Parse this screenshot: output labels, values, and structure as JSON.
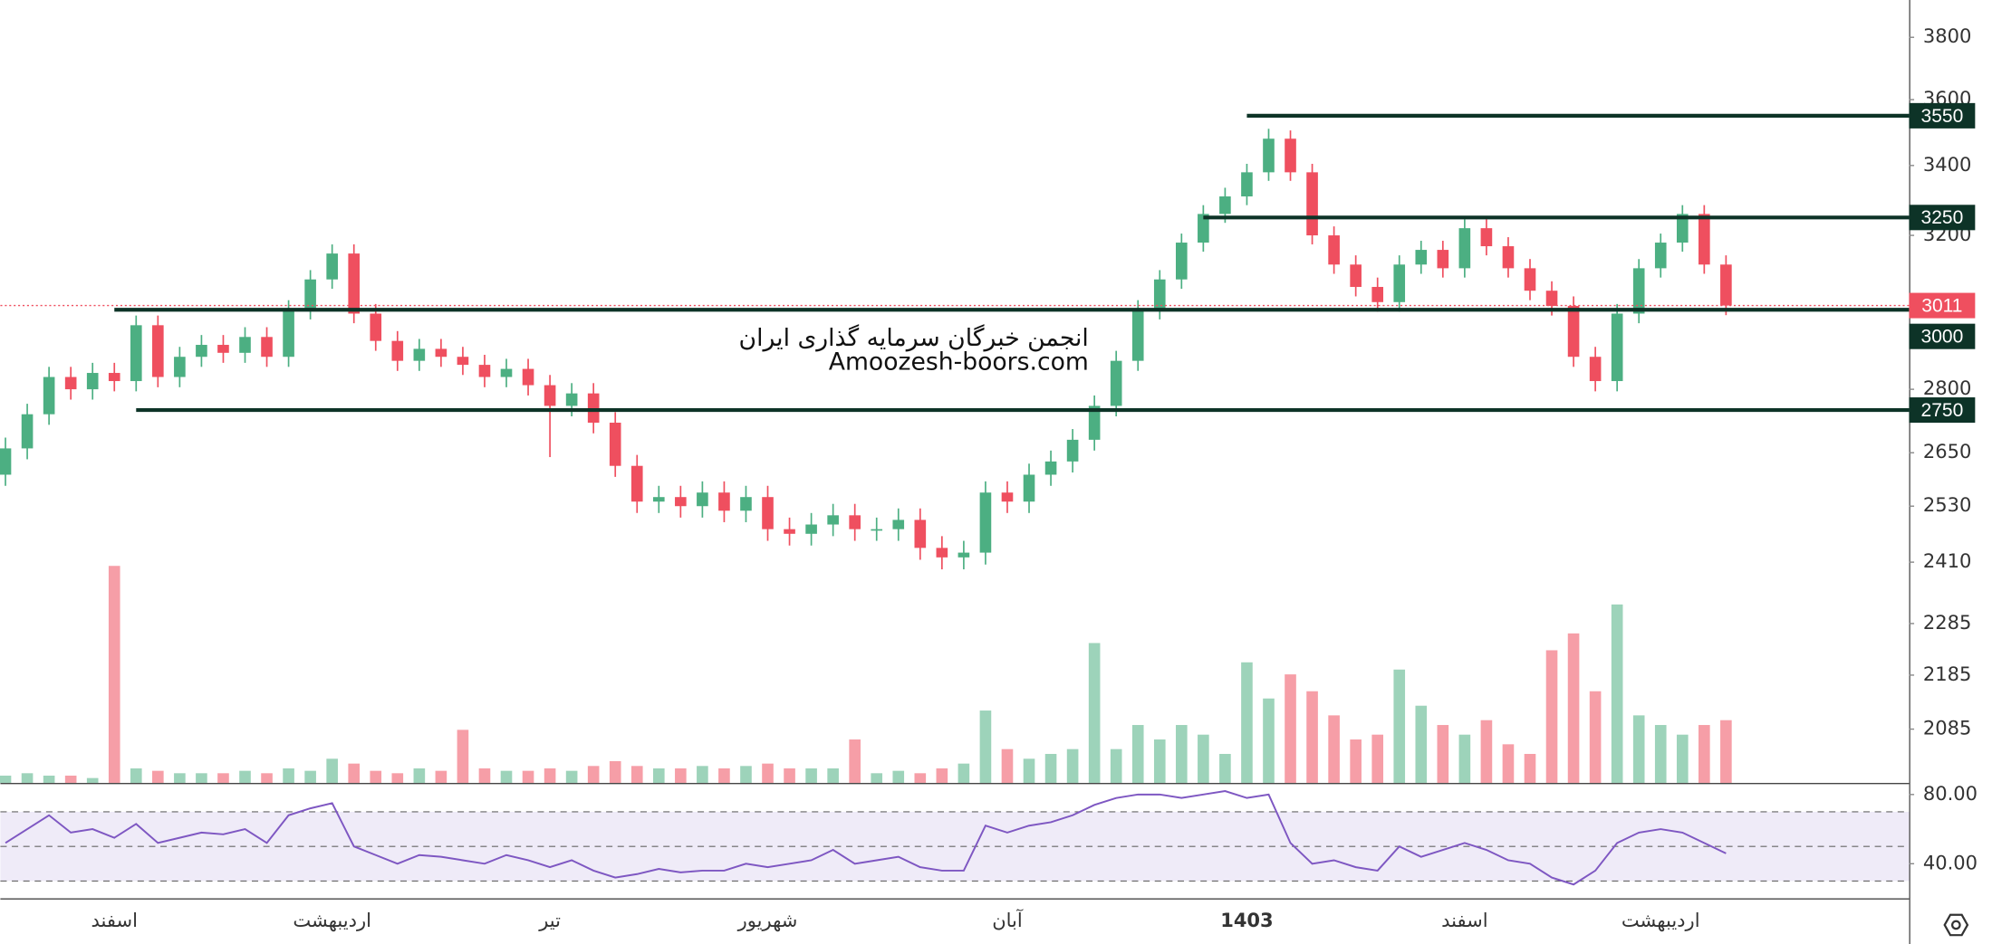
{
  "chart_data": {
    "type": "candlestick",
    "log_scale": true,
    "ylim": [
      1990,
      3925
    ],
    "yticks": [
      3800,
      3600,
      3400,
      3200,
      2800,
      2650,
      2530,
      2410,
      2285,
      2185,
      2085
    ],
    "up_color": "#4caf82",
    "down_color": "#ef4f5f",
    "categories": [
      null,
      null,
      null,
      null,
      null,
      "اسفند",
      null,
      null,
      null,
      null,
      null,
      null,
      null,
      null,
      null,
      "اردیبهشت",
      null,
      null,
      null,
      null,
      null,
      null,
      null,
      null,
      null,
      "تیر",
      null,
      null,
      null,
      null,
      null,
      null,
      null,
      null,
      null,
      "شهریور",
      null,
      null,
      null,
      null,
      null,
      null,
      null,
      null,
      null,
      null,
      "آبان",
      null,
      null,
      null,
      null,
      null,
      null,
      null,
      null,
      null,
      null,
      "1403",
      null,
      null,
      null,
      null,
      null,
      null,
      null,
      null,
      null,
      "اسفند",
      null,
      null,
      null,
      null,
      null,
      null,
      null,
      null,
      "اردیبهشت",
      null,
      null,
      null
    ],
    "open": [
      2600,
      2660,
      2740,
      2830,
      2800,
      2840,
      2820,
      2960,
      2830,
      2880,
      2910,
      2890,
      2930,
      2880,
      3000,
      3080,
      3150,
      2990,
      2920,
      2870,
      2900,
      2880,
      2860,
      2830,
      2850,
      2810,
      2760,
      2790,
      2720,
      2620,
      2540,
      2550,
      2530,
      2560,
      2520,
      2550,
      2480,
      2470,
      2490,
      2510,
      2480,
      2480,
      2500,
      2440,
      2420,
      2430,
      2560,
      2540,
      2600,
      2630,
      2680,
      2760,
      2870,
      3000,
      3080,
      3180,
      3260,
      3310,
      3380,
      3480,
      3380,
      3200,
      3120,
      3060,
      3020,
      3120,
      3160,
      3110,
      3220,
      3170,
      3110,
      3050,
      3010,
      2880,
      2820,
      2990,
      3110,
      3180,
      3260,
      3120
    ],
    "high": [
      2685,
      2765,
      2855,
      2855,
      2865,
      2865,
      2985,
      2985,
      2905,
      2935,
      2935,
      2955,
      2955,
      3025,
      3105,
      3175,
      3175,
      3015,
      2945,
      2925,
      2925,
      2905,
      2885,
      2875,
      2875,
      2835,
      2815,
      2815,
      2745,
      2645,
      2575,
      2575,
      2585,
      2585,
      2575,
      2575,
      2505,
      2515,
      2535,
      2535,
      2505,
      2525,
      2525,
      2465,
      2455,
      2585,
      2585,
      2625,
      2655,
      2705,
      2785,
      2895,
      3025,
      3105,
      3205,
      3285,
      3335,
      3405,
      3510,
      3505,
      3405,
      3225,
      3145,
      3085,
      3145,
      3185,
      3185,
      3245,
      3245,
      3195,
      3135,
      3075,
      3035,
      2905,
      3015,
      3135,
      3205,
      3285,
      3285,
      3145
    ],
    "low": [
      2575,
      2635,
      2715,
      2775,
      2775,
      2795,
      2795,
      2805,
      2805,
      2855,
      2865,
      2865,
      2855,
      2855,
      2975,
      3055,
      2965,
      2895,
      2845,
      2845,
      2855,
      2835,
      2805,
      2805,
      2785,
      2640,
      2735,
      2695,
      2595,
      2515,
      2515,
      2505,
      2505,
      2495,
      2495,
      2455,
      2445,
      2445,
      2465,
      2455,
      2455,
      2455,
      2415,
      2395,
      2395,
      2405,
      2515,
      2515,
      2575,
      2605,
      2655,
      2735,
      2845,
      2975,
      3055,
      3155,
      3235,
      3285,
      3355,
      3355,
      3175,
      3095,
      3035,
      2995,
      2995,
      3095,
      3085,
      3085,
      3145,
      3085,
      3025,
      2985,
      2855,
      2795,
      2795,
      2965,
      3085,
      3155,
      3095,
      2986
    ],
    "close": [
      2660,
      2740,
      2830,
      2800,
      2840,
      2820,
      2960,
      2830,
      2880,
      2910,
      2890,
      2930,
      2880,
      3000,
      3080,
      3150,
      2990,
      2920,
      2870,
      2900,
      2880,
      2860,
      2830,
      2850,
      2810,
      2760,
      2790,
      2720,
      2620,
      2540,
      2550,
      2530,
      2560,
      2520,
      2550,
      2480,
      2470,
      2490,
      2510,
      2480,
      2480,
      2500,
      2440,
      2420,
      2430,
      2560,
      2540,
      2600,
      2630,
      2680,
      2760,
      2870,
      3000,
      3080,
      3180,
      3260,
      3310,
      3380,
      3480,
      3380,
      3200,
      3120,
      3060,
      3020,
      3120,
      3160,
      3110,
      3220,
      3170,
      3110,
      3050,
      3010,
      2880,
      2820,
      2990,
      3110,
      3180,
      3260,
      3120,
      3011
    ],
    "volume": {
      "ylim": [
        0,
        100
      ],
      "values": [
        3,
        4,
        3,
        3,
        2,
        90,
        6,
        5,
        4,
        4,
        4,
        5,
        4,
        6,
        5,
        10,
        8,
        5,
        4,
        6,
        5,
        22,
        6,
        5,
        5,
        6,
        5,
        7,
        9,
        7,
        6,
        6,
        7,
        6,
        7,
        8,
        6,
        6,
        6,
        18,
        4,
        5,
        4,
        6,
        8,
        30,
        14,
        10,
        12,
        14,
        58,
        14,
        24,
        18,
        24,
        20,
        12,
        50,
        35,
        45,
        38,
        28,
        18,
        20,
        47,
        32,
        24,
        20,
        26,
        16,
        12,
        55,
        62,
        38,
        74,
        28,
        24,
        20,
        24,
        26
      ]
    },
    "levels": [
      {
        "value": 3550,
        "start": 57
      },
      {
        "value": 3250,
        "start": 55
      },
      {
        "value": 3000,
        "start": 5
      },
      {
        "value": 2750,
        "start": 6
      }
    ],
    "level_color": "#0d3327",
    "last_price_color": "#ef4f5f",
    "annotations": [
      "انجمن خبرگان سرمایه گذاری ایران",
      "Amoozesh-boors.com"
    ],
    "rsi": {
      "color": "#7e57c2",
      "ylim": [
        20,
        86
      ],
      "yticks": [
        {
          "value": 80,
          "label": "80.00"
        },
        {
          "value": 40,
          "label": "40.00"
        }
      ],
      "bands": [
        30,
        50,
        70
      ],
      "values": [
        52,
        60,
        68,
        58,
        60,
        55,
        63,
        52,
        55,
        58,
        57,
        60,
        52,
        68,
        72,
        75,
        50,
        45,
        40,
        45,
        44,
        42,
        40,
        45,
        42,
        38,
        42,
        36,
        32,
        34,
        37,
        35,
        36,
        36,
        40,
        38,
        40,
        42,
        48,
        40,
        42,
        44,
        38,
        36,
        36,
        62,
        58,
        62,
        64,
        68,
        74,
        78,
        80,
        80,
        78,
        80,
        82,
        78,
        80,
        52,
        40,
        42,
        38,
        36,
        50,
        44,
        48,
        52,
        48,
        42,
        40,
        32,
        28,
        36,
        52,
        58,
        60,
        58,
        52,
        46
      ]
    }
  }
}
